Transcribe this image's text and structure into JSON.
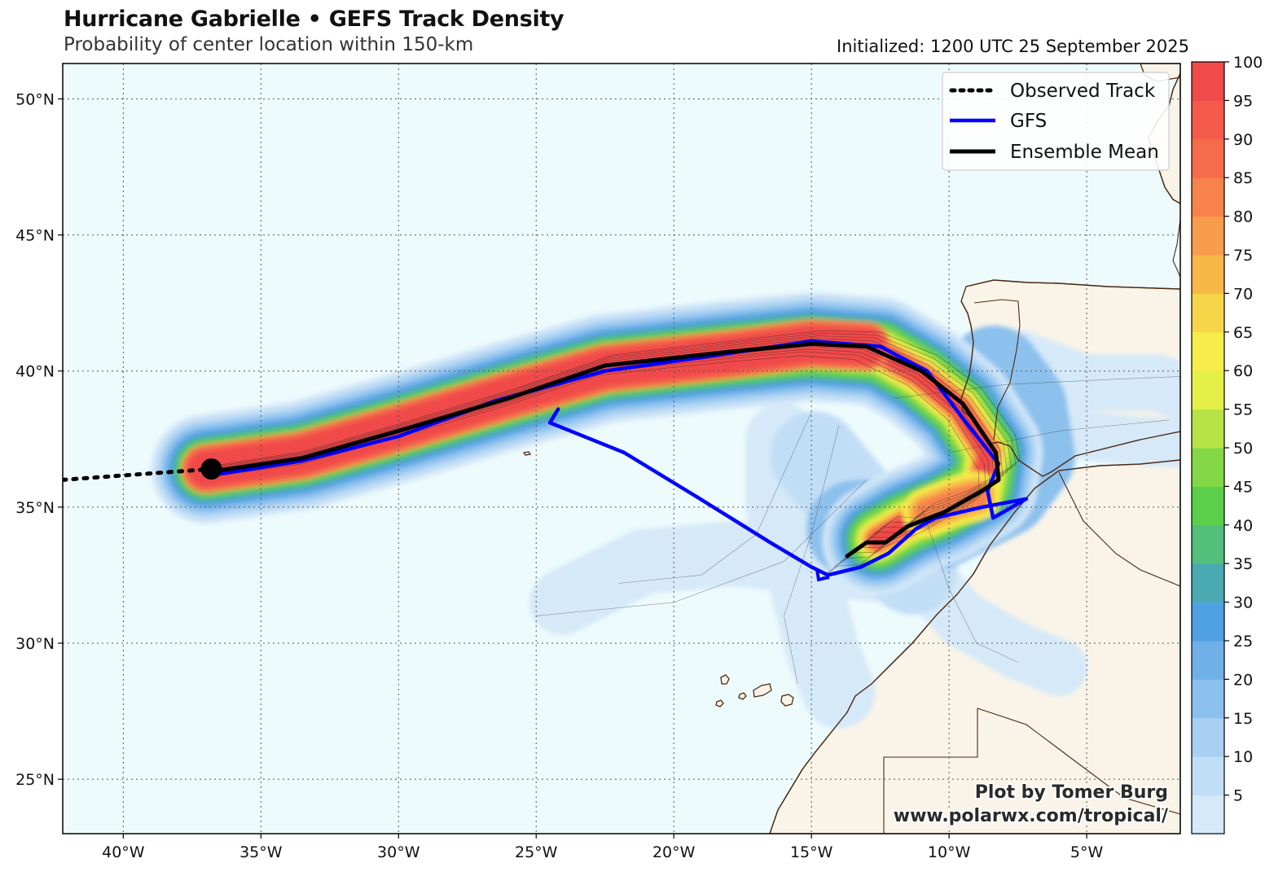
{
  "header": {
    "title": "Hurricane Gabrielle • GEFS Track Density",
    "subtitle": "Probability of center location within 150-km",
    "initialized": "Initialized: 1200 UTC 25 September 2025"
  },
  "map": {
    "lon_range": [
      -42.2,
      -1.6
    ],
    "lat_range": [
      23.0,
      51.3
    ],
    "lat_ticks": [
      {
        "value": 50,
        "label": "50°N"
      },
      {
        "value": 45,
        "label": "45°N"
      },
      {
        "value": 40,
        "label": "40°N"
      },
      {
        "value": 35,
        "label": "35°N"
      },
      {
        "value": 30,
        "label": "30°N"
      },
      {
        "value": 25,
        "label": "25°N"
      }
    ],
    "lon_ticks": [
      {
        "value": -40,
        "label": "40°W"
      },
      {
        "value": -35,
        "label": "35°W"
      },
      {
        "value": -30,
        "label": "30°W"
      },
      {
        "value": -25,
        "label": "25°W"
      },
      {
        "value": -20,
        "label": "20°W"
      },
      {
        "value": -15,
        "label": "15°W"
      },
      {
        "value": -10,
        "label": "10°W"
      },
      {
        "value": -5,
        "label": "5°W"
      }
    ],
    "ocean_color": "#eefbfd",
    "land_color": "#faf4e8",
    "coast_color": "#4a2a14"
  },
  "legend": {
    "items": [
      {
        "label": "Observed Track",
        "style": "dotted",
        "color": "#000000"
      },
      {
        "label": "GFS",
        "style": "solid",
        "color": "#0000ff"
      },
      {
        "label": "Ensemble Mean",
        "style": "solid",
        "color": "#000000"
      }
    ]
  },
  "colorbar": {
    "labels": [
      "5",
      "10",
      "15",
      "20",
      "25",
      "30",
      "35",
      "40",
      "45",
      "50",
      "55",
      "60",
      "65",
      "70",
      "75",
      "80",
      "85",
      "90",
      "95",
      "100"
    ],
    "colors": [
      "#d6e9f8",
      "#c2def6",
      "#a8d0f2",
      "#8cc1ee",
      "#6fb0e9",
      "#4fa0e3",
      "#4ba9b1",
      "#53bf7b",
      "#5ccf4a",
      "#84d848",
      "#b6e446",
      "#e4f048",
      "#f6ec4a",
      "#f6d548",
      "#f7b847",
      "#f79c4a",
      "#f7824b",
      "#f66c4b",
      "#f45b4b",
      "#f04a4a"
    ]
  },
  "credits": {
    "line1": "Plot by Tomer Burg",
    "line2": "www.polarwx.com/tropical/"
  },
  "tracks": {
    "observed": [
      [
        -42.2,
        36.0
      ],
      [
        -36.8,
        36.4
      ]
    ],
    "storm_position": [
      -36.8,
      36.4
    ],
    "ensemble_mean": [
      [
        -36.8,
        36.3
      ],
      [
        -33.5,
        36.8
      ],
      [
        -30,
        37.8
      ],
      [
        -26,
        39.0
      ],
      [
        -22.5,
        40.2
      ],
      [
        -18,
        40.7
      ],
      [
        -15,
        41.0
      ],
      [
        -13,
        40.9
      ],
      [
        -11,
        40.0
      ],
      [
        -9.5,
        38.8
      ],
      [
        -8.3,
        37.0
      ],
      [
        -8.2,
        36.0
      ],
      [
        -8.8,
        35.6
      ],
      [
        -10.2,
        34.8
      ],
      [
        -11.5,
        34.3
      ],
      [
        -12.3,
        33.7
      ],
      [
        -13.0,
        33.7
      ],
      [
        -13.7,
        33.2
      ]
    ],
    "gfs": [
      [
        -36.6,
        36.2
      ],
      [
        -33.5,
        36.7
      ],
      [
        -30,
        37.6
      ],
      [
        -26.5,
        38.9
      ],
      [
        -22.5,
        40.0
      ],
      [
        -19,
        40.5
      ],
      [
        -15,
        41.1
      ],
      [
        -12.5,
        40.9
      ],
      [
        -10.8,
        40.0
      ],
      [
        -9.3,
        38.0
      ],
      [
        -8.2,
        36.6
      ],
      [
        -8.6,
        35.6
      ],
      [
        -8.4,
        34.6
      ],
      [
        -7.2,
        35.3
      ],
      [
        -8.8,
        35.0
      ],
      [
        -10.5,
        34.6
      ],
      [
        -11.2,
        34.2
      ],
      [
        -12.2,
        33.3
      ],
      [
        -13.2,
        32.8
      ],
      [
        -14.4,
        32.5
      ],
      [
        -15.0,
        32.8
      ],
      [
        -16.5,
        33.7
      ],
      [
        -19.2,
        35.4
      ],
      [
        -21.8,
        37.0
      ],
      [
        -24.5,
        38.1
      ],
      [
        -24.2,
        38.6
      ]
    ]
  }
}
